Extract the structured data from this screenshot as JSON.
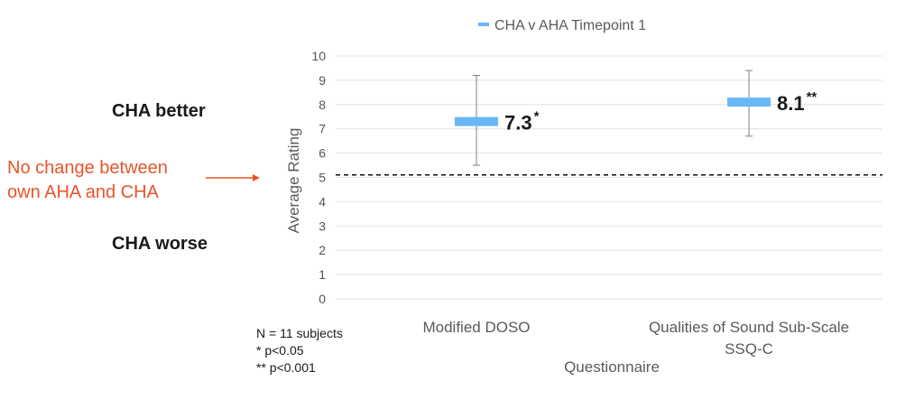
{
  "chart_data": {
    "type": "scatter",
    "xlabel": "Questionnaire",
    "ylabel": "Average Rating",
    "ylim": [
      0,
      10
    ],
    "yticks": [
      0,
      1,
      2,
      3,
      4,
      5,
      6,
      7,
      8,
      9,
      10
    ],
    "grid": true,
    "legend_position": "top-center",
    "series": [
      {
        "name": "CHA v AHA Timepoint 1",
        "color": "#6ab7f5",
        "points": [
          {
            "category": "Modified DOSO",
            "value": 7.3,
            "err_low": 5.5,
            "err_high": 9.2,
            "label": "7.3",
            "sig": "*"
          },
          {
            "category_lines": [
              "Qualities of Sound Sub-Scale",
              "SSQ-C"
            ],
            "value": 8.1,
            "err_low": 6.7,
            "err_high": 9.4,
            "label": "8.1",
            "sig": "**"
          }
        ]
      }
    ],
    "reference_line": {
      "y": 5.1,
      "style": "dashed",
      "color": "#111111"
    },
    "annotations": {
      "better": "CHA better",
      "worse": "CHA worse",
      "no_change_lines": [
        "No change between",
        "own AHA and CHA"
      ],
      "no_change_color": "#e8542b",
      "footnotes": [
        "N = 11 subjects",
        "* p<0.05",
        "** p<0.001"
      ]
    }
  }
}
